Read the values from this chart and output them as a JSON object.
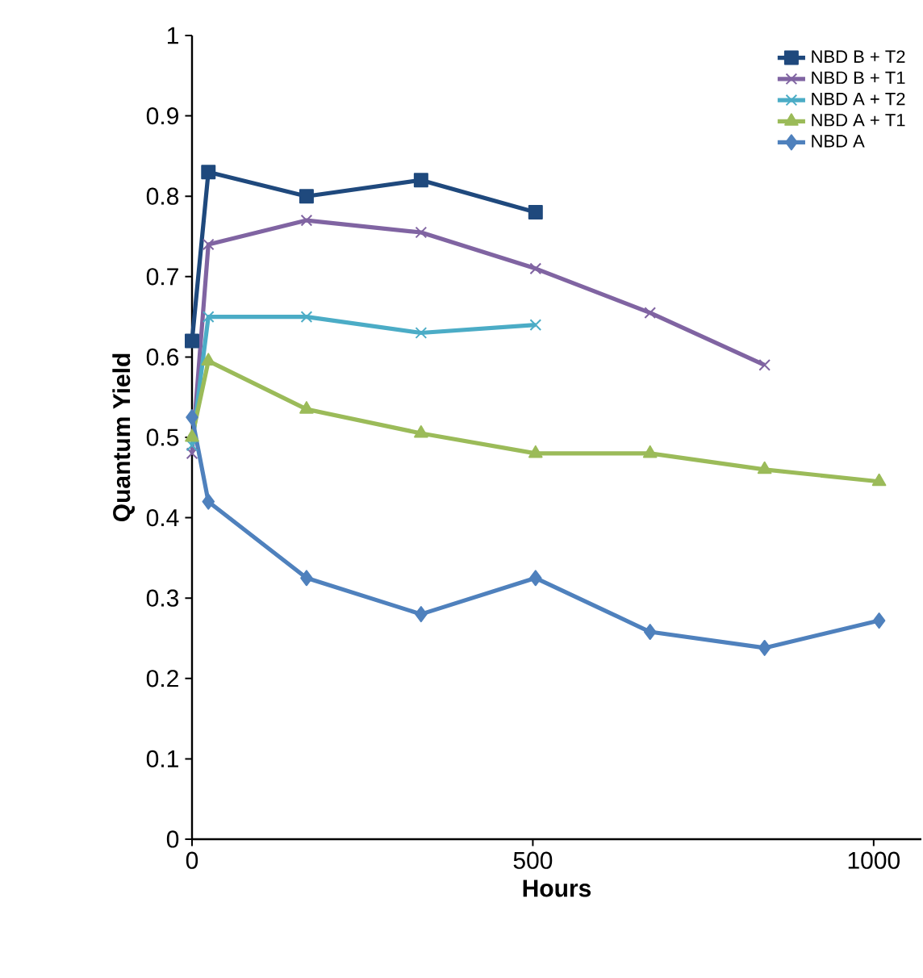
{
  "chart_data": {
    "type": "line",
    "xlabel": "Hours",
    "ylabel": "Quantum Yield",
    "xlim": [
      0,
      1070
    ],
    "ylim": [
      0,
      1
    ],
    "xticks": [
      0,
      500,
      1000
    ],
    "yticks": [
      0,
      0.1,
      0.2,
      0.3,
      0.4,
      0.5,
      0.6,
      0.7,
      0.8,
      0.9,
      1
    ],
    "grid": false,
    "legend": "top right",
    "series": [
      {
        "name": "NBD B + T2",
        "color": "#1f497d",
        "marker": "square",
        "x": [
          0,
          24,
          168,
          336,
          504
        ],
        "values": [
          0.62,
          0.83,
          0.8,
          0.82,
          0.78
        ]
      },
      {
        "name": "NBD B + T1",
        "color": "#8064a2",
        "marker": "cross",
        "x": [
          0,
          24,
          168,
          336,
          504,
          672,
          840
        ],
        "values": [
          0.48,
          0.74,
          0.77,
          0.755,
          0.71,
          0.655,
          0.59
        ]
      },
      {
        "name": "NBD A + T2",
        "color": "#4bacc6",
        "marker": "cross",
        "x": [
          0,
          24,
          168,
          336,
          504
        ],
        "values": [
          0.49,
          0.65,
          0.65,
          0.63,
          0.64
        ]
      },
      {
        "name": "NBD A + T1",
        "color": "#9bbb59",
        "marker": "triangle",
        "x": [
          0,
          24,
          168,
          336,
          504,
          672,
          840,
          1008
        ],
        "values": [
          0.5,
          0.595,
          0.535,
          0.505,
          0.48,
          0.48,
          0.46,
          0.445
        ]
      },
      {
        "name": "NBD A",
        "color": "#4f81bd",
        "marker": "diamond",
        "x": [
          0,
          24,
          168,
          336,
          504,
          672,
          840,
          1008
        ],
        "values": [
          0.525,
          0.42,
          0.325,
          0.28,
          0.325,
          0.258,
          0.238,
          0.272
        ]
      }
    ]
  }
}
